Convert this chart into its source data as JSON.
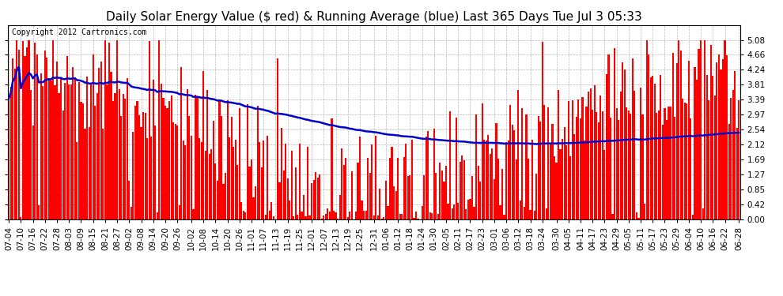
{
  "title": "Daily Solar Energy Value ($ red) & Running Average (blue) Last 365 Days Tue Jul 3 05:33",
  "copyright_text": "Copyright 2012 Cartronics.com",
  "yticks": [
    0.0,
    0.42,
    0.85,
    1.27,
    1.69,
    2.12,
    2.54,
    2.97,
    3.39,
    3.81,
    4.24,
    4.66,
    5.08
  ],
  "ylim": [
    0.0,
    5.5
  ],
  "bar_color": "#ff0000",
  "avg_color": "#0000cc",
  "bg_color": "#ffffff",
  "grid_color": "#888888",
  "title_fontsize": 11,
  "copyright_fontsize": 7,
  "tick_fontsize": 7.5,
  "x_labels": [
    "07-04",
    "07-10",
    "07-16",
    "07-22",
    "07-28",
    "08-03",
    "08-09",
    "08-15",
    "08-21",
    "08-27",
    "09-02",
    "09-08",
    "09-14",
    "09-20",
    "09-26",
    "10-02",
    "10-08",
    "10-14",
    "10-20",
    "10-26",
    "11-01",
    "11-07",
    "11-13",
    "11-19",
    "11-25",
    "12-01",
    "12-07",
    "12-13",
    "12-19",
    "12-25",
    "12-31",
    "01-06",
    "01-12",
    "01-18",
    "01-24",
    "01-30",
    "02-05",
    "02-11",
    "02-17",
    "02-23",
    "03-01",
    "03-06",
    "03-12",
    "03-18",
    "03-24",
    "03-30",
    "04-05",
    "04-11",
    "04-17",
    "04-23",
    "04-29",
    "05-05",
    "05-11",
    "05-17",
    "05-23",
    "05-29",
    "06-04",
    "06-10",
    "06-16",
    "06-22",
    "06-28"
  ],
  "num_days": 365,
  "seed": 12345
}
